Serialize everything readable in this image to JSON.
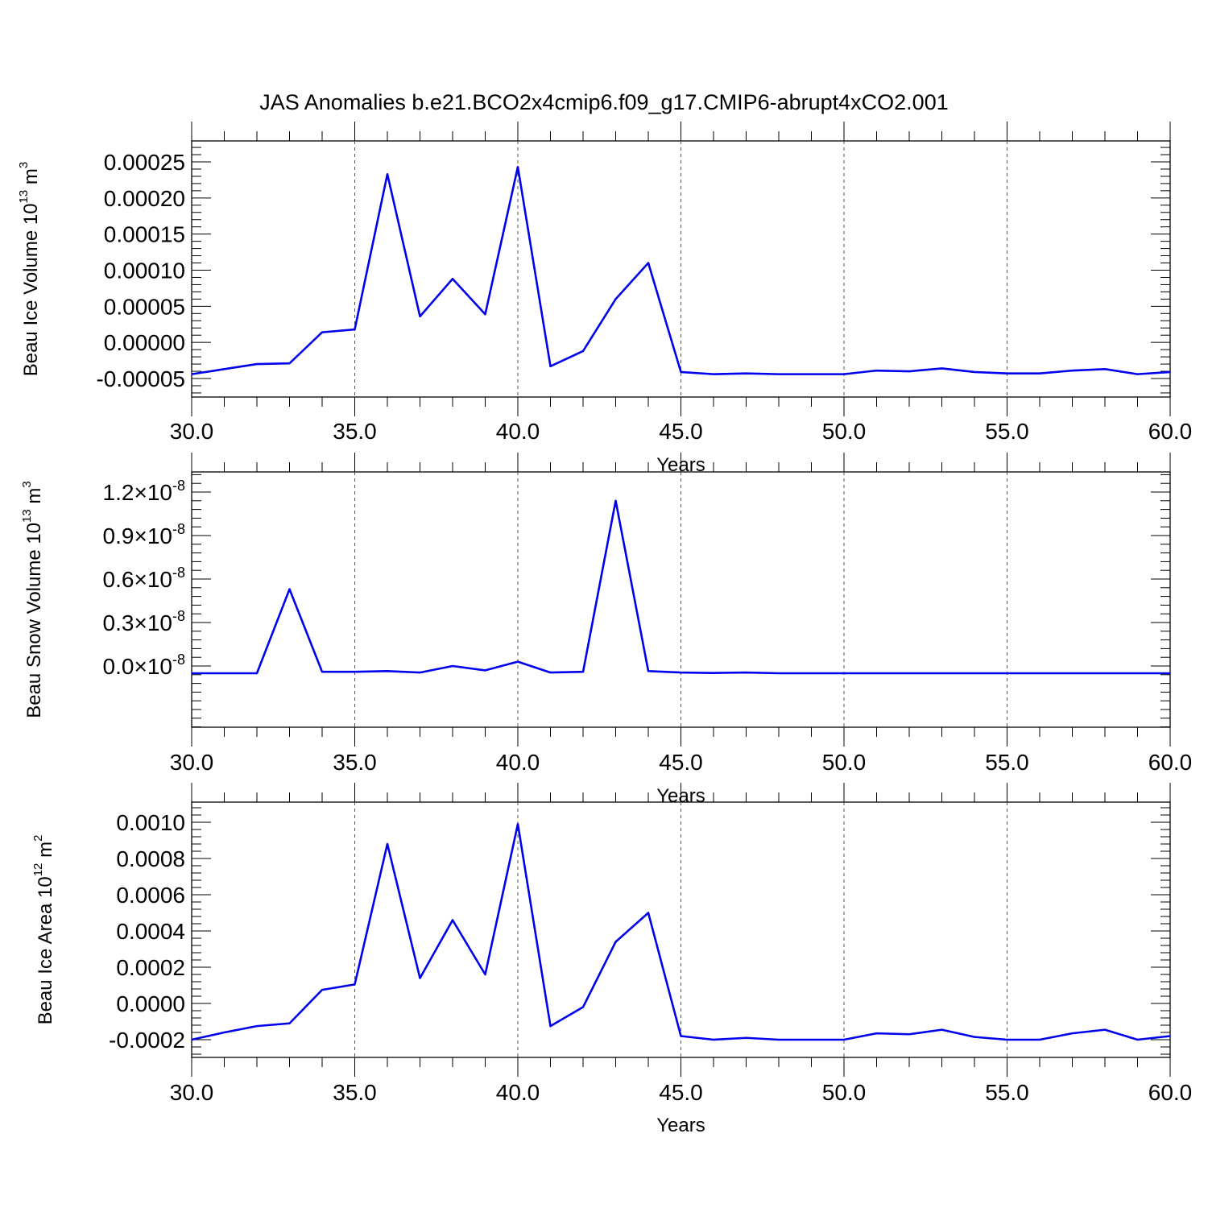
{
  "figure_title": "JAS Anomalies b.e21.BCO2x4cmip6.f09_g17.CMIP6-abrupt4xCO2.001",
  "colors": {
    "line": "#0000ee",
    "axis": "#000000",
    "grid": "#555555"
  },
  "chart_data": [
    {
      "type": "line",
      "title": "",
      "xlabel": "Years",
      "ylabel": "Beau Ice Volume 10^13 m^3",
      "ylabel_parts": {
        "base": "Beau Ice Volume 10",
        "exp1": "13",
        "unit": " m",
        "exp2": "3"
      },
      "xlim": [
        30,
        60
      ],
      "ylim": [
        -5e-05,
        0.00025
      ],
      "x_ticks": [
        30,
        35,
        40,
        45,
        50,
        55,
        60
      ],
      "x_tick_labels": [
        "30.0",
        "35.0",
        "40.0",
        "45.0",
        "50.0",
        "55.0",
        "60.0"
      ],
      "y_ticks": [
        -5e-05,
        0,
        5e-05,
        0.0001,
        0.00015,
        0.0002,
        0.00025
      ],
      "y_tick_labels": [
        "-0.00005",
        "0.00000",
        "0.00005",
        "0.00010",
        "0.00015",
        "0.00020",
        "0.00025"
      ],
      "grid": "vertical dashed at major x ticks",
      "series": [
        {
          "x": [
            30,
            31,
            32,
            33,
            34,
            35,
            36,
            37,
            38,
            39,
            40,
            41,
            42,
            43,
            44,
            45,
            46,
            47,
            48,
            49,
            50,
            51,
            52,
            53,
            54,
            55,
            56,
            57,
            58,
            59,
            60
          ],
          "values": [
            -4.4e-05,
            -3.7e-05,
            -3e-05,
            -2.9e-05,
            1.4e-05,
            1.8e-05,
            0.000233,
            3.6e-05,
            8.8e-05,
            3.9e-05,
            0.000243,
            -3.3e-05,
            -1.2e-05,
            6e-05,
            0.00011,
            -4.1e-05,
            -4.4e-05,
            -4.3e-05,
            -4.4e-05,
            -4.4e-05,
            -4.4e-05,
            -3.9e-05,
            -4e-05,
            -3.6e-05,
            -4.1e-05,
            -4.3e-05,
            -4.3e-05,
            -3.9e-05,
            -3.7e-05,
            -4.4e-05,
            -4.1e-05
          ]
        }
      ]
    },
    {
      "type": "line",
      "title": "",
      "xlabel": "Years",
      "ylabel": "Beau Snow Volume 10^13 m^3",
      "ylabel_parts": {
        "base": "Beau Snow Volume 10",
        "exp1": "13",
        "unit": " m",
        "exp2": "3"
      },
      "xlim": [
        30,
        60
      ],
      "ylim": [
        -3e-09,
        1.2e-08
      ],
      "x_ticks": [
        30,
        35,
        40,
        45,
        50,
        55,
        60
      ],
      "x_tick_labels": [
        "30.0",
        "35.0",
        "40.0",
        "45.0",
        "50.0",
        "55.0",
        "60.0"
      ],
      "y_ticks": [
        0,
        3e-09,
        6e-09,
        9e-09,
        1.2e-08
      ],
      "y_tick_labels": [
        {
          "mant": "0.0",
          "exp": "-8"
        },
        {
          "mant": "0.3",
          "exp": "-8"
        },
        {
          "mant": "0.6",
          "exp": "-8"
        },
        {
          "mant": "0.9",
          "exp": "-8"
        },
        {
          "mant": "1.2",
          "exp": "-8"
        }
      ],
      "grid": "vertical dashed at major x ticks",
      "series": [
        {
          "x": [
            30,
            31,
            32,
            33,
            34,
            35,
            36,
            37,
            38,
            39,
            40,
            41,
            42,
            43,
            44,
            45,
            46,
            47,
            48,
            49,
            50,
            51,
            52,
            53,
            54,
            55,
            56,
            57,
            58,
            59,
            60
          ],
          "values": [
            -5e-10,
            -5e-10,
            -5e-10,
            5.3e-09,
            -4e-10,
            -4e-10,
            -3.5e-10,
            -4.5e-10,
            0.0,
            -3e-10,
            3e-10,
            -4.5e-10,
            -4e-10,
            1.14e-08,
            -3.5e-10,
            -4.5e-10,
            -4.8e-10,
            -4.5e-10,
            -5e-10,
            -5e-10,
            -5e-10,
            -5e-10,
            -5e-10,
            -5e-10,
            -5e-10,
            -5e-10,
            -5e-10,
            -5e-10,
            -5e-10,
            -5e-10,
            -5e-10
          ]
        }
      ]
    },
    {
      "type": "line",
      "title": "",
      "xlabel": "Years",
      "ylabel": "Beau Ice Area 10^12 m^2",
      "ylabel_parts": {
        "base": "Beau Ice Area 10",
        "exp1": "12",
        "unit": " m",
        "exp2": "2"
      },
      "xlim": [
        30,
        60
      ],
      "ylim": [
        -0.0002,
        0.001
      ],
      "x_ticks": [
        30,
        35,
        40,
        45,
        50,
        55,
        60
      ],
      "x_tick_labels": [
        "30.0",
        "35.0",
        "40.0",
        "45.0",
        "50.0",
        "55.0",
        "60.0"
      ],
      "y_ticks": [
        -0.0002,
        0,
        0.0002,
        0.0004,
        0.0006,
        0.0008,
        0.001
      ],
      "y_tick_labels": [
        "-0.0002",
        "0.0000",
        "0.0002",
        "0.0004",
        "0.0006",
        "0.0008",
        "0.0010"
      ],
      "grid": "vertical dashed at major x ticks",
      "series": [
        {
          "x": [
            30,
            31,
            32,
            33,
            34,
            35,
            36,
            37,
            38,
            39,
            40,
            41,
            42,
            43,
            44,
            45,
            46,
            47,
            48,
            49,
            50,
            51,
            52,
            53,
            54,
            55,
            56,
            57,
            58,
            59,
            60
          ],
          "values": [
            -0.0002,
            -0.00016,
            -0.000125,
            -0.00011,
            7.5e-05,
            0.000105,
            0.00088,
            0.00014,
            0.00046,
            0.00016,
            0.00099,
            -0.000125,
            -2e-05,
            0.00034,
            0.0005,
            -0.00018,
            -0.0002,
            -0.00019,
            -0.0002,
            -0.0002,
            -0.0002,
            -0.000165,
            -0.00017,
            -0.000145,
            -0.000185,
            -0.0002,
            -0.0002,
            -0.000165,
            -0.000145,
            -0.0002,
            -0.00018
          ]
        }
      ]
    }
  ]
}
